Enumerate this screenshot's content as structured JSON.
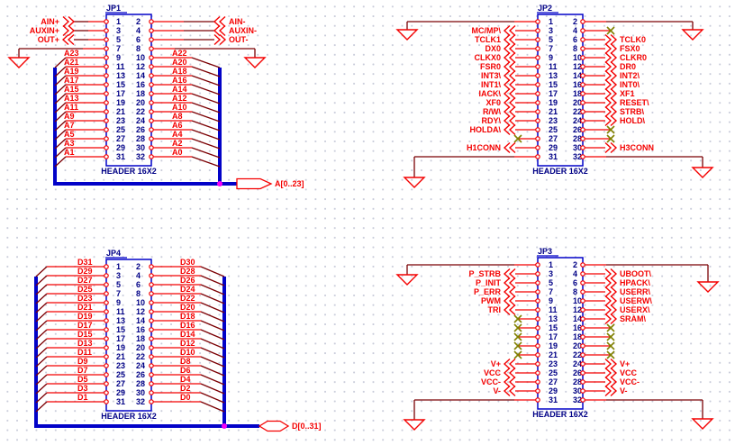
{
  "colors": {
    "wire_red": "#f40000",
    "wire_dim": "#7b0004",
    "bus_blue": "#0202c8",
    "text_navy": "#000086",
    "no_connect": "#808000",
    "junction": "#f800f8",
    "grid_dot": "#c9ccda"
  },
  "connectors": [
    {
      "id": "JP1",
      "title": "JP1",
      "part": "HEADER 16X2",
      "bus_tag": {
        "label": "A[0..23]"
      },
      "left": [
        {
          "pin": 1,
          "kind": "in",
          "label": "AIN+"
        },
        {
          "pin": 3,
          "kind": "in",
          "label": "AUXIN+"
        },
        {
          "pin": 5,
          "kind": "out",
          "label": "OUT+"
        },
        {
          "pin": 7,
          "kind": "gnd"
        },
        {
          "pin": 9,
          "kind": "bus",
          "label": "A23"
        },
        {
          "pin": 11,
          "kind": "bus",
          "label": "A21"
        },
        {
          "pin": 13,
          "kind": "bus",
          "label": "A19"
        },
        {
          "pin": 15,
          "kind": "bus",
          "label": "A17"
        },
        {
          "pin": 17,
          "kind": "bus",
          "label": "A15"
        },
        {
          "pin": 19,
          "kind": "bus",
          "label": "A13"
        },
        {
          "pin": 21,
          "kind": "bus",
          "label": "A11"
        },
        {
          "pin": 23,
          "kind": "bus",
          "label": "A9"
        },
        {
          "pin": 25,
          "kind": "bus",
          "label": "A7"
        },
        {
          "pin": 27,
          "kind": "bus",
          "label": "A5"
        },
        {
          "pin": 29,
          "kind": "bus",
          "label": "A3"
        },
        {
          "pin": 31,
          "kind": "bus",
          "label": "A1"
        }
      ],
      "right": [
        {
          "pin": 2,
          "kind": "in",
          "label": "AIN-"
        },
        {
          "pin": 4,
          "kind": "in",
          "label": "AUXIN-"
        },
        {
          "pin": 6,
          "kind": "out",
          "label": "OUT-"
        },
        {
          "pin": 8,
          "kind": "gnd"
        },
        {
          "pin": 10,
          "kind": "bus",
          "label": "A22"
        },
        {
          "pin": 12,
          "kind": "bus",
          "label": "A20"
        },
        {
          "pin": 14,
          "kind": "bus",
          "label": "A18"
        },
        {
          "pin": 16,
          "kind": "bus",
          "label": "A16"
        },
        {
          "pin": 18,
          "kind": "bus",
          "label": "A14"
        },
        {
          "pin": 20,
          "kind": "bus",
          "label": "A12"
        },
        {
          "pin": 22,
          "kind": "bus",
          "label": "A10"
        },
        {
          "pin": 24,
          "kind": "bus",
          "label": "A8"
        },
        {
          "pin": 26,
          "kind": "bus",
          "label": "A6"
        },
        {
          "pin": 28,
          "kind": "bus",
          "label": "A4"
        },
        {
          "pin": 30,
          "kind": "bus",
          "label": "A2"
        },
        {
          "pin": 32,
          "kind": "bus",
          "label": "A0"
        }
      ]
    },
    {
      "id": "JP2",
      "title": "JP2",
      "part": "HEADER 16X2",
      "left": [
        {
          "pin": 1,
          "kind": "gnd"
        },
        {
          "pin": 3,
          "kind": "sig",
          "label": "MC/MP\\"
        },
        {
          "pin": 5,
          "kind": "sig",
          "label": "TCLK1"
        },
        {
          "pin": 7,
          "kind": "sig",
          "label": "DX0"
        },
        {
          "pin": 9,
          "kind": "sig",
          "label": "CLKX0"
        },
        {
          "pin": 11,
          "kind": "sig",
          "label": "FSR0"
        },
        {
          "pin": 13,
          "kind": "sig",
          "label": "INT3\\"
        },
        {
          "pin": 15,
          "kind": "sig",
          "label": "INT1\\"
        },
        {
          "pin": 17,
          "kind": "sig",
          "label": "IACK\\"
        },
        {
          "pin": 19,
          "kind": "sig",
          "label": "XF0"
        },
        {
          "pin": 21,
          "kind": "sig",
          "label": "R/W\\"
        },
        {
          "pin": 23,
          "kind": "sig",
          "label": "RDY\\"
        },
        {
          "pin": 25,
          "kind": "sig",
          "label": "HOLDA\\"
        },
        {
          "pin": 27,
          "kind": "nc"
        },
        {
          "pin": 29,
          "kind": "sig",
          "label": "H1CONN"
        },
        {
          "pin": 31,
          "kind": "gnd"
        }
      ],
      "right": [
        {
          "pin": 2,
          "kind": "gnd"
        },
        {
          "pin": 4,
          "kind": "nc"
        },
        {
          "pin": 6,
          "kind": "sig",
          "label": "TCLK0"
        },
        {
          "pin": 8,
          "kind": "sig",
          "label": "FSX0"
        },
        {
          "pin": 10,
          "kind": "sig",
          "label": "CLKR0"
        },
        {
          "pin": 12,
          "kind": "sig",
          "label": "DR0"
        },
        {
          "pin": 14,
          "kind": "sig",
          "label": "INT2\\"
        },
        {
          "pin": 16,
          "kind": "sig",
          "label": "INT0\\"
        },
        {
          "pin": 18,
          "kind": "sig",
          "label": "XF1"
        },
        {
          "pin": 20,
          "kind": "sig",
          "label": "RESET\\"
        },
        {
          "pin": 22,
          "kind": "sig",
          "label": "STRB\\"
        },
        {
          "pin": 24,
          "kind": "sig",
          "label": "HOLD\\"
        },
        {
          "pin": 26,
          "kind": "nc"
        },
        {
          "pin": 28,
          "kind": "nc"
        },
        {
          "pin": 30,
          "kind": "sig",
          "label": "H3CONN"
        },
        {
          "pin": 32,
          "kind": "gnd"
        }
      ]
    },
    {
      "id": "JP3",
      "title": "JP3",
      "part": "HEADER 16X2",
      "left": [
        {
          "pin": 1,
          "kind": "gnd"
        },
        {
          "pin": 3,
          "kind": "sig",
          "label": "P_STRB"
        },
        {
          "pin": 5,
          "kind": "sig",
          "label": "P_INIT"
        },
        {
          "pin": 7,
          "kind": "sig",
          "label": "P_ERR"
        },
        {
          "pin": 9,
          "kind": "sig",
          "label": "PWM"
        },
        {
          "pin": 11,
          "kind": "sig",
          "label": "TRI"
        },
        {
          "pin": 13,
          "kind": "nc"
        },
        {
          "pin": 15,
          "kind": "nc"
        },
        {
          "pin": 17,
          "kind": "nc"
        },
        {
          "pin": 19,
          "kind": "nc"
        },
        {
          "pin": 21,
          "kind": "nc"
        },
        {
          "pin": 23,
          "kind": "sig",
          "label": "V+"
        },
        {
          "pin": 25,
          "kind": "sig",
          "label": "VCC"
        },
        {
          "pin": 27,
          "kind": "sig",
          "label": "VCC-"
        },
        {
          "pin": 29,
          "kind": "sig",
          "label": "V-"
        },
        {
          "pin": 31,
          "kind": "gnd"
        }
      ],
      "right": [
        {
          "pin": 2,
          "kind": "gnd"
        },
        {
          "pin": 4,
          "kind": "sig",
          "label": "UBOOT\\"
        },
        {
          "pin": 6,
          "kind": "sig",
          "label": "HPACK\\"
        },
        {
          "pin": 8,
          "kind": "sig",
          "label": "USERR\\"
        },
        {
          "pin": 10,
          "kind": "sig",
          "label": "USERW\\"
        },
        {
          "pin": 12,
          "kind": "sig",
          "label": "USERX\\"
        },
        {
          "pin": 14,
          "kind": "sig",
          "label": "SRAM\\"
        },
        {
          "pin": 16,
          "kind": "nc"
        },
        {
          "pin": 18,
          "kind": "nc"
        },
        {
          "pin": 20,
          "kind": "nc"
        },
        {
          "pin": 22,
          "kind": "nc"
        },
        {
          "pin": 24,
          "kind": "sig",
          "label": "V+"
        },
        {
          "pin": 26,
          "kind": "sig",
          "label": "VCC"
        },
        {
          "pin": 28,
          "kind": "sig",
          "label": "VCC-"
        },
        {
          "pin": 30,
          "kind": "sig",
          "label": "V-"
        },
        {
          "pin": 32,
          "kind": "gnd"
        }
      ]
    },
    {
      "id": "JP4",
      "title": "JP4",
      "part": "HEADER 16X2",
      "bus_tag": {
        "label": "D[0..31]"
      },
      "left": [
        {
          "pin": 1,
          "kind": "bus",
          "label": "D31"
        },
        {
          "pin": 3,
          "kind": "bus",
          "label": "D29"
        },
        {
          "pin": 5,
          "kind": "bus",
          "label": "D27"
        },
        {
          "pin": 7,
          "kind": "bus",
          "label": "D25"
        },
        {
          "pin": 9,
          "kind": "bus",
          "label": "D23"
        },
        {
          "pin": 11,
          "kind": "bus",
          "label": "D21"
        },
        {
          "pin": 13,
          "kind": "bus",
          "label": "D19"
        },
        {
          "pin": 15,
          "kind": "bus",
          "label": "D17"
        },
        {
          "pin": 17,
          "kind": "bus",
          "label": "D15"
        },
        {
          "pin": 19,
          "kind": "bus",
          "label": "D13"
        },
        {
          "pin": 21,
          "kind": "bus",
          "label": "D11"
        },
        {
          "pin": 23,
          "kind": "bus",
          "label": "D9"
        },
        {
          "pin": 25,
          "kind": "bus",
          "label": "D7"
        },
        {
          "pin": 27,
          "kind": "bus",
          "label": "D5"
        },
        {
          "pin": 29,
          "kind": "bus",
          "label": "D3"
        },
        {
          "pin": 31,
          "kind": "bus",
          "label": "D1"
        }
      ],
      "right": [
        {
          "pin": 2,
          "kind": "bus",
          "label": "D30"
        },
        {
          "pin": 4,
          "kind": "bus",
          "label": "D28"
        },
        {
          "pin": 6,
          "kind": "bus",
          "label": "D26"
        },
        {
          "pin": 8,
          "kind": "bus",
          "label": "D24"
        },
        {
          "pin": 10,
          "kind": "bus",
          "label": "D22"
        },
        {
          "pin": 12,
          "kind": "bus",
          "label": "D20"
        },
        {
          "pin": 14,
          "kind": "bus",
          "label": "D18"
        },
        {
          "pin": 16,
          "kind": "bus",
          "label": "D16"
        },
        {
          "pin": 18,
          "kind": "bus",
          "label": "D14"
        },
        {
          "pin": 20,
          "kind": "bus",
          "label": "D12"
        },
        {
          "pin": 22,
          "kind": "bus",
          "label": "D10"
        },
        {
          "pin": 24,
          "kind": "bus",
          "label": "D8"
        },
        {
          "pin": 26,
          "kind": "bus",
          "label": "D6"
        },
        {
          "pin": 28,
          "kind": "bus",
          "label": "D4"
        },
        {
          "pin": 30,
          "kind": "bus",
          "label": "D2"
        },
        {
          "pin": 32,
          "kind": "bus",
          "label": "D0"
        }
      ]
    }
  ]
}
